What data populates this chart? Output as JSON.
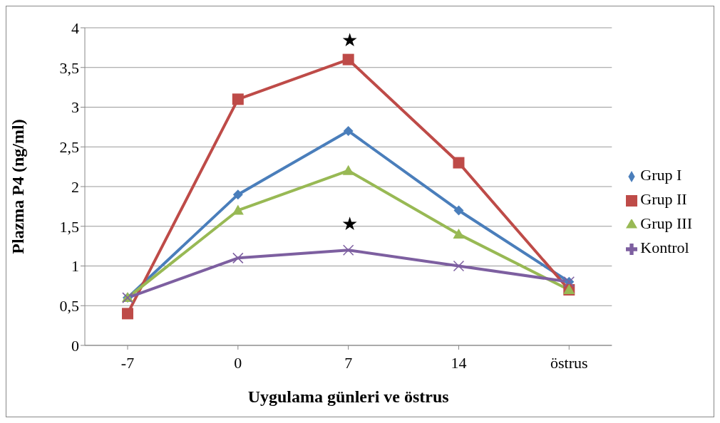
{
  "chart_data": {
    "type": "line",
    "xlabel": "Uygulama günleri ve östrus",
    "ylabel": "Plazma P4 (ng/ml)",
    "categories": [
      "-7",
      "0",
      "7",
      "14",
      "östrus"
    ],
    "series": [
      {
        "name": "Grup I",
        "color": "#4a7ebb",
        "marker": "diamond",
        "values": [
          0.6,
          1.9,
          2.7,
          1.7,
          0.8
        ]
      },
      {
        "name": "Grup II",
        "color": "#be4b48",
        "marker": "square",
        "values": [
          0.4,
          3.1,
          3.6,
          2.3,
          0.7
        ]
      },
      {
        "name": "Grup III",
        "color": "#98b954",
        "marker": "triangle",
        "values": [
          0.6,
          1.7,
          2.2,
          1.4,
          0.7
        ]
      },
      {
        "name": "Kontrol",
        "color": "#7d5fa0",
        "marker": "cross",
        "values": [
          0.6,
          1.1,
          1.2,
          1.0,
          0.8
        ]
      }
    ],
    "ylim": [
      0,
      4
    ],
    "yticks": [
      0,
      {
        "value": 0.5,
        "label": "0,5"
      },
      1,
      {
        "value": 1.5,
        "label": "1,5"
      },
      2,
      {
        "value": 2.5,
        "label": "2,5"
      },
      3,
      {
        "value": 3.5,
        "label": "3,5"
      },
      4
    ],
    "grid": "y",
    "legend": "right",
    "line_style": "solid",
    "annotations": [
      "★",
      "★"
    ]
  }
}
